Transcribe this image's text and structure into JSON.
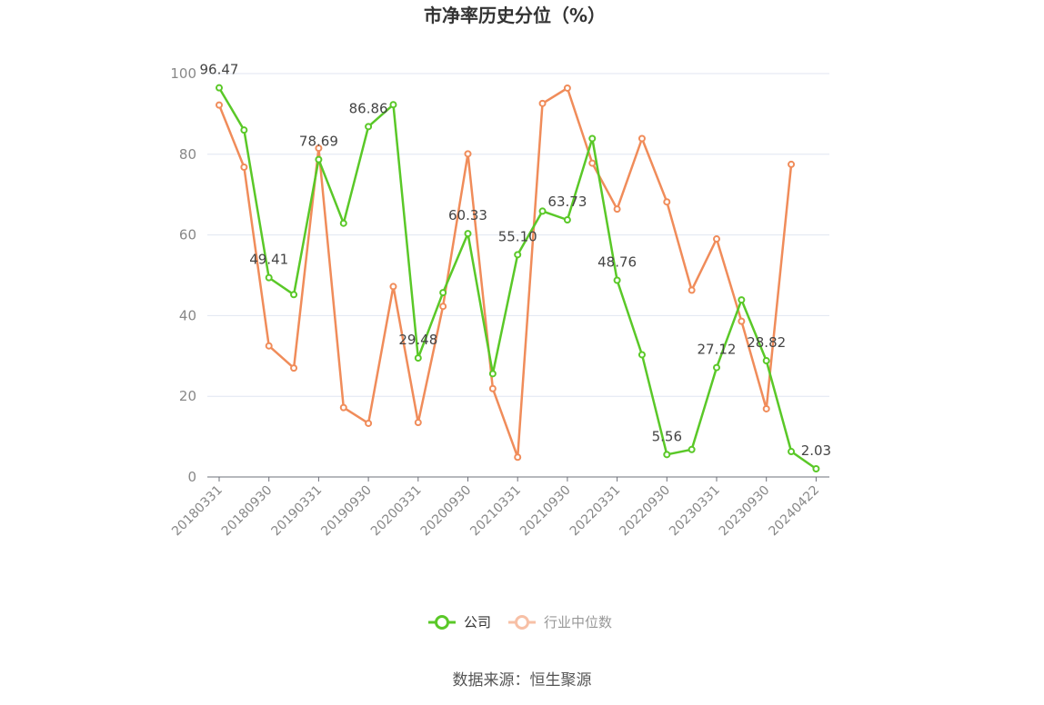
{
  "chart_data": {
    "type": "line",
    "title": "市净率历史分位（%）",
    "ylim": [
      0,
      100
    ],
    "yticks": [
      0,
      20,
      40,
      60,
      80,
      100
    ],
    "grid": true,
    "legend_position": "bottom",
    "x_tick_labels": [
      "20180331",
      "20180930",
      "20190331",
      "20190930",
      "20200331",
      "20200930",
      "20210331",
      "20210930",
      "20220331",
      "20220930",
      "20230331",
      "20230930",
      "20240422"
    ],
    "x": [
      "20180331",
      "20180630",
      "20180930",
      "20181231",
      "20190331",
      "20190630",
      "20190930",
      "20191231",
      "20200331",
      "20200630",
      "20200930",
      "20201231",
      "20210331",
      "20210630",
      "20210930",
      "20211231",
      "20220331",
      "20220630",
      "20220930",
      "20221231",
      "20230331",
      "20230630",
      "20230930",
      "20231231",
      "20240422"
    ],
    "series": [
      {
        "name": "公司",
        "color": "#5ac828",
        "values": [
          96.47,
          86.0,
          49.41,
          45.2,
          78.69,
          62.9,
          86.86,
          92.3,
          29.48,
          45.7,
          60.33,
          25.6,
          55.1,
          65.9,
          63.73,
          83.9,
          48.76,
          30.3,
          5.56,
          6.8,
          27.12,
          43.9,
          28.82,
          6.3,
          2.03
        ],
        "labels": [
          "96.47",
          "",
          "49.41",
          "",
          "78.69",
          "",
          "86.86",
          "",
          "29.48",
          "",
          "60.33",
          "",
          "55.10",
          "",
          "63.73",
          "",
          "48.76",
          "",
          "5.56",
          "",
          "27.12",
          "",
          "28.82",
          "",
          "2.03"
        ]
      },
      {
        "name": "行业中位数",
        "color": "#f08c5a",
        "values": [
          92.2,
          76.8,
          32.5,
          27.0,
          81.5,
          17.2,
          13.3,
          47.2,
          13.5,
          42.3,
          80.1,
          21.9,
          4.9,
          92.6,
          96.4,
          77.8,
          66.4,
          83.9,
          68.2,
          46.3,
          59.0,
          38.6,
          16.9,
          77.5,
          null
        ]
      }
    ]
  },
  "source_text": "数据来源：恒生聚源"
}
